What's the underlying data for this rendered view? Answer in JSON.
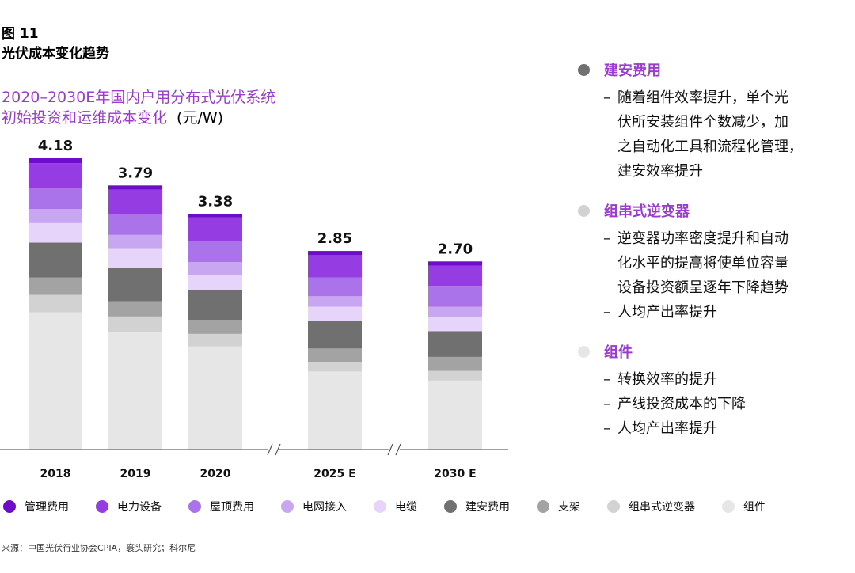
{
  "figure": {
    "number": "图 11",
    "title": "光伏成本变化趋势",
    "chart_title_line1": "2020–2030E年国内户用分布式光伏系统",
    "chart_title_line2": "初始投资和运维成本变化",
    "unit": "(元/W)"
  },
  "chart_data": {
    "type": "bar",
    "stacked": true,
    "categories": [
      "2018",
      "2019",
      "2020",
      "2025 E",
      "2030 E"
    ],
    "totals": [
      4.18,
      3.79,
      3.38,
      2.85,
      2.7
    ],
    "ylim": [
      0,
      4.3
    ],
    "axis_break_between": [
      [
        "2020",
        "2025 E"
      ],
      [
        "2025 E",
        "2030 E"
      ]
    ],
    "series": [
      {
        "name": "组件",
        "color": "#e6e6e6",
        "values": [
          1.97,
          1.69,
          1.48,
          1.12,
          0.99
        ]
      },
      {
        "name": "组串式逆变器",
        "color": "#d2d2d2",
        "values": [
          0.25,
          0.22,
          0.18,
          0.13,
          0.14
        ]
      },
      {
        "name": "支架",
        "color": "#a3a3a3",
        "values": [
          0.25,
          0.22,
          0.2,
          0.2,
          0.2
        ]
      },
      {
        "name": "建安费用",
        "color": "#707070",
        "values": [
          0.5,
          0.48,
          0.43,
          0.4,
          0.37
        ]
      },
      {
        "name": "电缆",
        "color": "#e7d4fb",
        "values": [
          0.28,
          0.28,
          0.22,
          0.2,
          0.2
        ]
      },
      {
        "name": "电网接入",
        "color": "#c9a6f2",
        "values": [
          0.2,
          0.19,
          0.18,
          0.15,
          0.15
        ]
      },
      {
        "name": "屋顶费用",
        "color": "#aa73ea",
        "values": [
          0.3,
          0.3,
          0.3,
          0.27,
          0.3
        ]
      },
      {
        "name": "电力设备",
        "color": "#953ce3",
        "values": [
          0.36,
          0.35,
          0.34,
          0.32,
          0.29
        ]
      },
      {
        "name": "管理费用",
        "color": "#6e0ccc",
        "values": [
          0.07,
          0.06,
          0.05,
          0.06,
          0.06
        ]
      }
    ],
    "legend_position": "bottom",
    "grid": false
  },
  "legend": [
    {
      "label": "管理费用",
      "color": "#6e0ccc"
    },
    {
      "label": "电力设备",
      "color": "#953ce3"
    },
    {
      "label": "屋顶费用",
      "color": "#aa73ea"
    },
    {
      "label": "电网接入",
      "color": "#c9a6f2"
    },
    {
      "label": "电缆",
      "color": "#e7d4fb"
    },
    {
      "label": "建安费用",
      "color": "#707070"
    },
    {
      "label": "支架",
      "color": "#a3a3a3"
    },
    {
      "label": "组串式逆变器",
      "color": "#d2d2d2"
    },
    {
      "label": "组件",
      "color": "#e6e6e6"
    }
  ],
  "notes": [
    {
      "heading": "建安费用",
      "color": "#707070",
      "items": [
        "随着组件效率提升，单个光\n伏所安装组件个数减少，加\n之自动化工具和流程化管理，\n建安效率提升"
      ]
    },
    {
      "heading": "组串式逆变器",
      "color": "#d2d2d2",
      "items": [
        "逆变器功率密度提升和自动\n化水平的提高将使单位容量\n设备投资额呈逐年下降趋势",
        "人均产出率提升"
      ]
    },
    {
      "heading": "组件",
      "color": "#e6e6e6",
      "items": [
        "转换效率的提升",
        "产线投资成本的下降",
        "人均产出率提升"
      ]
    }
  ],
  "source": "来源：中国光伏行业协会CPIA，寰头研究；科尔尼"
}
